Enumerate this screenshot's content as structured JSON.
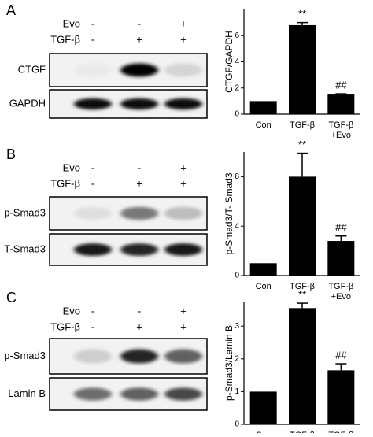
{
  "chart_data": [
    {
      "type": "bar",
      "y_label": "CTGF/GAPDH",
      "categories": [
        "Con",
        "TGF-β",
        "TGF-β\n+Evo"
      ],
      "values": [
        1,
        6.8,
        1.5
      ],
      "errors": [
        0,
        0.2,
        0.06
      ],
      "annotations": [
        null,
        "**",
        "##"
      ],
      "color": "#000000",
      "ylim": [
        0,
        8
      ],
      "yticks": [
        0,
        2,
        4,
        6
      ]
    },
    {
      "type": "bar",
      "y_label": "p-Smad3/T- Smad3",
      "categories": [
        "Con",
        "TGF-β",
        "TGF-β\n+Evo"
      ],
      "values": [
        1,
        8,
        2.8
      ],
      "errors": [
        0,
        1.9,
        0.4
      ],
      "annotations": [
        null,
        "**",
        "##"
      ],
      "color": "#000000",
      "ylim": [
        0,
        10
      ],
      "yticks": [
        0,
        4,
        8
      ]
    },
    {
      "type": "bar",
      "y_label": "p-Smad3/Lamin B",
      "categories": [
        "Con",
        "TGF-β",
        "TGF-β\n+Evo"
      ],
      "values": [
        1,
        3.55,
        1.65
      ],
      "errors": [
        0,
        0.15,
        0.2
      ],
      "annotations": [
        null,
        "**",
        "##"
      ],
      "color": "#000000",
      "ylim": [
        0,
        3.75
      ],
      "yticks": [
        0,
        1,
        2,
        3
      ]
    }
  ],
  "blots": [
    {
      "letter": "A",
      "rows": [
        {
          "label": "Evo",
          "signs": [
            "-",
            "-",
            "+"
          ]
        },
        {
          "label": "TGF-β",
          "signs": [
            "-",
            "+",
            "+"
          ]
        }
      ],
      "bands": [
        "CTGF",
        "GAPDH"
      ]
    },
    {
      "letter": "B",
      "rows": [
        {
          "label": "Evo",
          "signs": [
            "-",
            "-",
            "+"
          ]
        },
        {
          "label": "TGF-β",
          "signs": [
            "-",
            "+",
            "+"
          ]
        }
      ],
      "bands": [
        "p-Smad3",
        "T-Smad3"
      ]
    },
    {
      "letter": "C",
      "rows": [
        {
          "label": "Evo",
          "signs": [
            "-",
            "-",
            "+"
          ]
        },
        {
          "label": "TGF-β",
          "signs": [
            "-",
            "+",
            "+"
          ]
        }
      ],
      "bands": [
        "p-Smad3",
        "Lamin B"
      ]
    }
  ]
}
